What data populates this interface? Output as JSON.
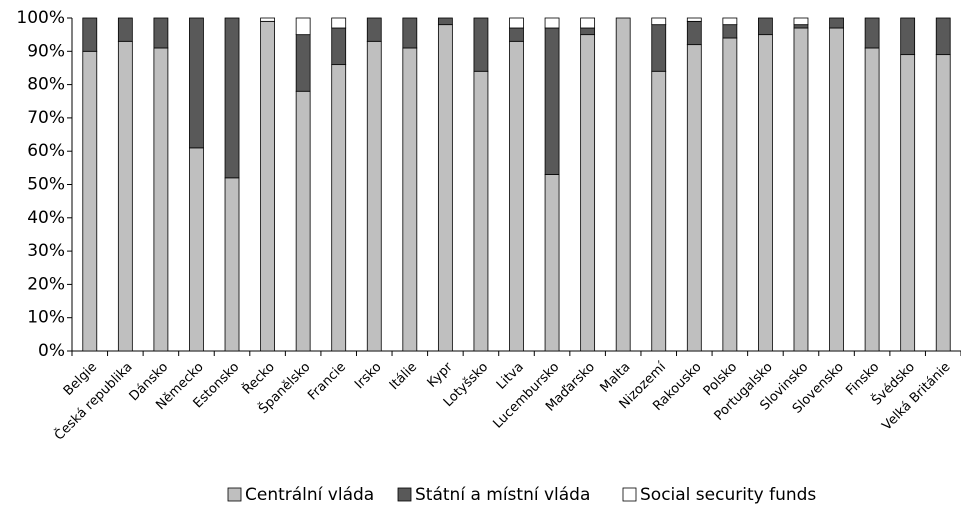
{
  "chart_data": {
    "type": "stacked_bar",
    "categories": [
      "Belgie",
      "Česká republika",
      "Dánsko",
      "Německo",
      "Estonsko",
      "Řecko",
      "Španělsko",
      "Francie",
      "Irsko",
      "Itálie",
      "Kypr",
      "Lotyšsko",
      "Litva",
      "Lucembursko",
      "Maďarsko",
      "Malta",
      "Nizozemí",
      "Rakousko",
      "Polsko",
      "Portugalsko",
      "Slovinsko",
      "Slovensko",
      "Finsko",
      "Švédsko",
      "Velká Británie"
    ],
    "series": [
      {
        "name": "Centrální vláda",
        "color": "#bfbfbf",
        "values": [
          90,
          93,
          91,
          61,
          52,
          99,
          78,
          86,
          93,
          91,
          98,
          84,
          93,
          53,
          95,
          100,
          84,
          92,
          94,
          95,
          97,
          97,
          91,
          89,
          89
        ]
      },
      {
        "name": "Státní a místní vláda",
        "color": "#595959",
        "values": [
          10,
          7,
          9,
          39,
          48,
          0,
          17,
          11,
          7,
          9,
          2,
          16,
          4,
          44,
          2,
          0,
          14,
          7,
          4,
          5,
          1,
          3,
          9,
          11,
          11
        ]
      },
      {
        "name": "Social security funds",
        "color": "#ffffff",
        "values": [
          0,
          0,
          0,
          0,
          0,
          1,
          5,
          3,
          0,
          0,
          0,
          0,
          3,
          3,
          3,
          0,
          2,
          1,
          2,
          0,
          2,
          0,
          0,
          0,
          0
        ]
      }
    ],
    "ylim": [
      0,
      100
    ],
    "yticks": [
      {
        "value": 0,
        "label": "0%"
      },
      {
        "value": 10,
        "label": "10%"
      },
      {
        "value": 20,
        "label": "20%"
      },
      {
        "value": 30,
        "label": "30%"
      },
      {
        "value": 40,
        "label": "40%"
      },
      {
        "value": 50,
        "label": "50%"
      },
      {
        "value": 60,
        "label": "60%"
      },
      {
        "value": 70,
        "label": "70%"
      },
      {
        "value": 80,
        "label": "80%"
      },
      {
        "value": 90,
        "label": "90%"
      },
      {
        "value": 100,
        "label": "100%"
      }
    ],
    "grid": false,
    "legend": "bottom"
  }
}
